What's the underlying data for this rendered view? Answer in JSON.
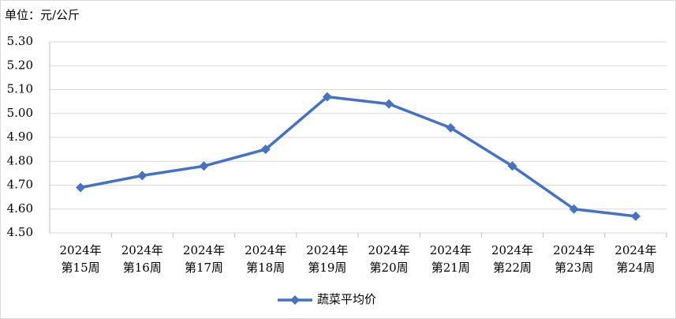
{
  "chart_data": {
    "type": "line",
    "unit_label": "单位：元/公斤",
    "categories": [
      [
        "2024年",
        "第15周"
      ],
      [
        "2024年",
        "第16周"
      ],
      [
        "2024年",
        "第17周"
      ],
      [
        "2024年",
        "第18周"
      ],
      [
        "2024年",
        "第19周"
      ],
      [
        "2024年",
        "第20周"
      ],
      [
        "2024年",
        "第21周"
      ],
      [
        "2024年",
        "第22周"
      ],
      [
        "2024年",
        "第23周"
      ],
      [
        "2024年",
        "第24周"
      ]
    ],
    "series": [
      {
        "name": "蔬菜平均价",
        "color": "#4472c4",
        "values": [
          4.69,
          4.74,
          4.78,
          4.85,
          5.07,
          5.04,
          4.94,
          4.78,
          4.6,
          4.57
        ]
      }
    ],
    "ylim": [
      4.5,
      5.3
    ],
    "yticks": [
      {
        "value": 4.5,
        "label": "4.50"
      },
      {
        "value": 4.6,
        "label": "4.60"
      },
      {
        "value": 4.7,
        "label": "4.70"
      },
      {
        "value": 4.8,
        "label": "4.80"
      },
      {
        "value": 4.9,
        "label": "4.90"
      },
      {
        "value": 5.0,
        "label": "5.00"
      },
      {
        "value": 5.1,
        "label": "5.10"
      },
      {
        "value": 5.2,
        "label": "5.20"
      },
      {
        "value": 5.3,
        "label": "5.30"
      }
    ],
    "grid": true,
    "legend": "bottom"
  }
}
